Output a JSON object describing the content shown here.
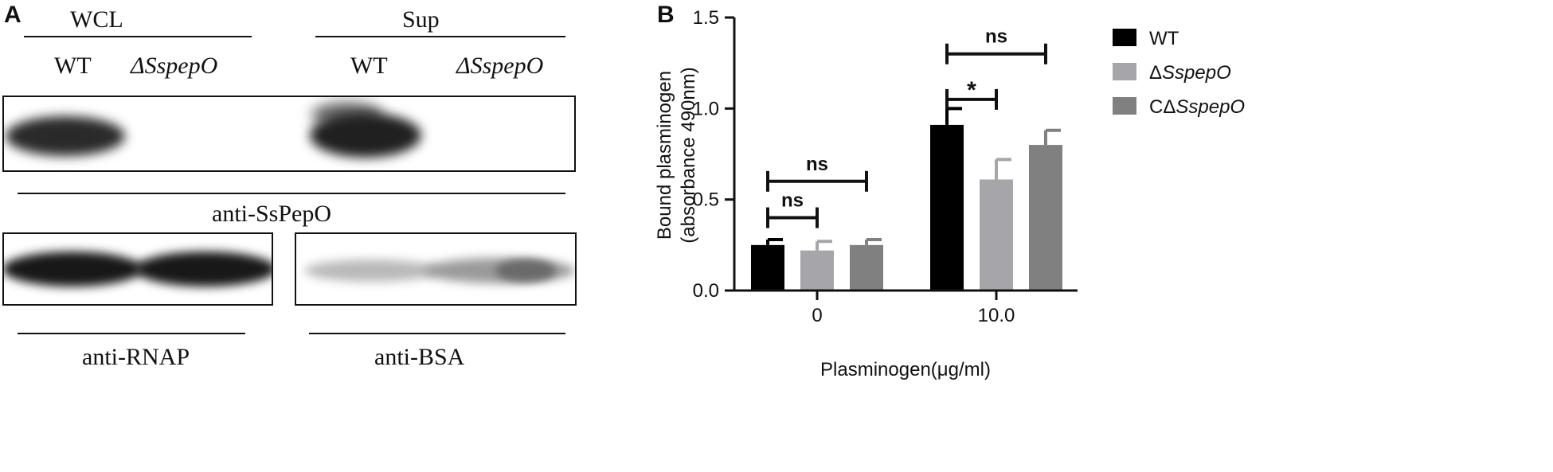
{
  "panel_a": {
    "letter": "A",
    "groups": {
      "wcl": "WCL",
      "sup": "Sup"
    },
    "lanes": [
      "WT",
      "ΔSspepO",
      "WT",
      "ΔSspepO"
    ],
    "labels": {
      "top_blot": "anti-SsPepO",
      "rnap": "anti-RNAP",
      "bsa": "anti-BSA"
    }
  },
  "panel_b": {
    "letter": "B",
    "chart_data": {
      "type": "bar",
      "categories": [
        "0",
        "10.0"
      ],
      "xlabel": "Plasminogen(μg/ml)",
      "ylabel_lines": [
        "Bound plasminogen",
        "(absorbance 490nm)"
      ],
      "ylim": [
        0,
        1.5
      ],
      "yticks": [
        "0.0",
        "0.5",
        "1.0",
        "1.5"
      ],
      "grid": false,
      "legend_position": "right",
      "series": [
        {
          "name": "WT",
          "color": "#000000",
          "values": [
            0.25,
            0.91
          ],
          "errors": [
            0.03,
            0.09
          ]
        },
        {
          "name": "ΔSspepO",
          "color": "#a6a6aa",
          "values": [
            0.22,
            0.61
          ],
          "errors": [
            0.05,
            0.11
          ]
        },
        {
          "name": "CΔSspepO",
          "color": "#808080",
          "values": [
            0.25,
            0.8
          ],
          "errors": [
            0.03,
            0.08
          ]
        }
      ],
      "annotations": [
        {
          "text": "ns",
          "category": 0,
          "from_series": 0,
          "to_series": 2,
          "level": 0.6
        },
        {
          "text": "ns",
          "category": 0,
          "from_series": 0,
          "to_series": 1,
          "level": 0.4
        },
        {
          "text": "ns",
          "category": 1,
          "from_series": 0,
          "to_series": 2,
          "level": 1.3
        },
        {
          "text": "*",
          "category": 1,
          "from_series": 0,
          "to_series": 1,
          "level": 1.05
        }
      ]
    }
  }
}
